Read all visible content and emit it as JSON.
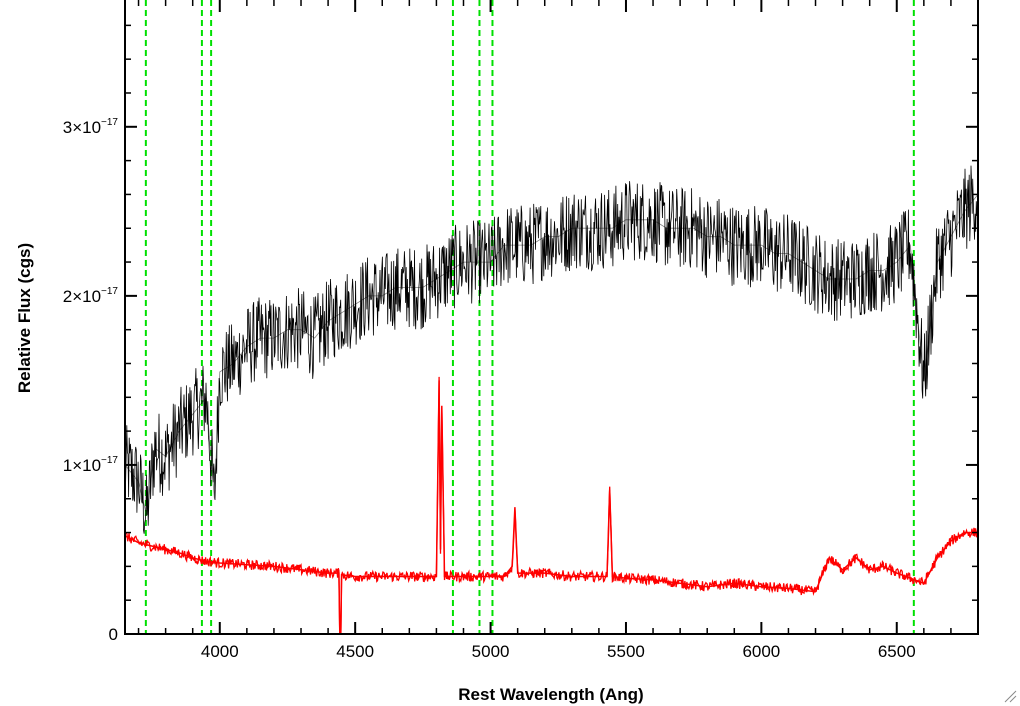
{
  "chart_data": {
    "type": "line",
    "title": "",
    "xlabel": "Rest Wavelength (Ang)",
    "ylabel": "Relative Flux (cgs)",
    "xlim": [
      3650,
      6800
    ],
    "ylim": [
      0,
      3.75e-17
    ],
    "x_ticks": [
      {
        "value": 4000,
        "label": "4000"
      },
      {
        "value": 4500,
        "label": "4500"
      },
      {
        "value": 5000,
        "label": "5000"
      },
      {
        "value": 5500,
        "label": "5500"
      },
      {
        "value": 6000,
        "label": "6000"
      },
      {
        "value": 6500,
        "label": "6500"
      }
    ],
    "y_ticks": [
      {
        "value": 0,
        "mant": "0",
        "exp": ""
      },
      {
        "value": 1e-17,
        "mant": "1×10",
        "exp": "−17"
      },
      {
        "value": 2e-17,
        "mant": "2×10",
        "exp": "−17"
      },
      {
        "value": 3e-17,
        "mant": "3×10",
        "exp": "−17"
      }
    ],
    "grid": false,
    "series": [
      {
        "color": "#000000",
        "style": "solid",
        "x": [
          3650,
          3700,
          3730,
          3760,
          3800,
          3850,
          3900,
          3950,
          3980,
          4000,
          4050,
          4100,
          4150,
          4200,
          4250,
          4300,
          4350,
          4400,
          4450,
          4500,
          4550,
          4600,
          4650,
          4700,
          4750,
          4800,
          4850,
          4900,
          4950,
          5000,
          5050,
          5100,
          5150,
          5200,
          5250,
          5300,
          5350,
          5400,
          5450,
          5500,
          5550,
          5600,
          5650,
          5700,
          5750,
          5800,
          5850,
          5900,
          5950,
          6000,
          6050,
          6100,
          6150,
          6200,
          6250,
          6300,
          6350,
          6400,
          6450,
          6500,
          6550,
          6600,
          6650,
          6700,
          6750,
          6800
        ],
        "y": [
          1e-17,
          9e-18,
          7e-18,
          1.1e-17,
          1.05e-17,
          1.2e-17,
          1.3e-17,
          1.4e-17,
          8e-18,
          1.55e-17,
          1.6e-17,
          1.7e-17,
          1.75e-17,
          1.75e-17,
          1.8e-17,
          1.8e-17,
          1.75e-17,
          1.85e-17,
          1.9e-17,
          1.95e-17,
          2e-17,
          2e-17,
          2.05e-17,
          2.05e-17,
          2.05e-17,
          2.1e-17,
          2.15e-17,
          2.2e-17,
          2.2e-17,
          2.2e-17,
          2.3e-17,
          2.3e-17,
          2.3e-17,
          2.35e-17,
          2.35e-17,
          2.4e-17,
          2.4e-17,
          2.4e-17,
          2.4e-17,
          2.45e-17,
          2.45e-17,
          2.45e-17,
          2.4e-17,
          2.4e-17,
          2.4e-17,
          2.35e-17,
          2.35e-17,
          2.3e-17,
          2.3e-17,
          2.3e-17,
          2.25e-17,
          2.25e-17,
          2.2e-17,
          2.15e-17,
          2.1e-17,
          2.1e-17,
          2.1e-17,
          2.15e-17,
          2.15e-17,
          2.2e-17,
          2.3e-17,
          1.5e-17,
          2.2e-17,
          2.35e-17,
          2.5e-17,
          2.6e-17
        ],
        "noise_amplitude": 2.5e-18
      },
      {
        "color": "#ff0000",
        "style": "solid",
        "x": [
          3650,
          3700,
          3750,
          3800,
          3850,
          3900,
          3950,
          4000,
          4100,
          4200,
          4300,
          4400,
          4440,
          4445,
          4450,
          4500,
          4600,
          4700,
          4800,
          4810,
          4815,
          4820,
          4830,
          4900,
          4950,
          5000,
          5050,
          5080,
          5090,
          5100,
          5200,
          5300,
          5400,
          5430,
          5440,
          5450,
          5500,
          5600,
          5700,
          5800,
          5900,
          6000,
          6100,
          6200,
          6250,
          6300,
          6350,
          6400,
          6450,
          6500,
          6550,
          6600,
          6650,
          6700,
          6750,
          6800
        ],
        "y": [
          5.8e-18,
          5.4e-18,
          5.2e-18,
          5e-18,
          4.8e-18,
          4.5e-18,
          4.3e-18,
          4.2e-18,
          4.1e-18,
          4e-18,
          3.8e-18,
          3.6e-18,
          3.6e-18,
          -2e-18,
          3.5e-18,
          3.4e-18,
          3.4e-18,
          3.4e-18,
          3.4e-18,
          1.5e-17,
          5e-18,
          1.35e-17,
          3.4e-18,
          3.4e-18,
          3.4e-18,
          3.4e-18,
          3.4e-18,
          4e-18,
          7.5e-18,
          3.6e-18,
          3.6e-18,
          3.4e-18,
          3.4e-18,
          3.4e-18,
          8.5e-18,
          3.4e-18,
          3.3e-18,
          3.2e-18,
          3e-18,
          2.8e-18,
          3e-18,
          2.8e-18,
          2.7e-18,
          2.5e-18,
          4.5e-18,
          3.8e-18,
          4.5e-18,
          3.8e-18,
          4e-18,
          3.6e-18,
          3.3e-18,
          3e-18,
          4.5e-18,
          5.5e-18,
          6e-18,
          6e-18
        ],
        "noise_amplitude": 3e-19
      }
    ],
    "vlines": {
      "color": "#00e000",
      "style": "dashed",
      "x": [
        3727,
        3934,
        3968,
        4861,
        4959,
        5007,
        6563
      ]
    }
  }
}
